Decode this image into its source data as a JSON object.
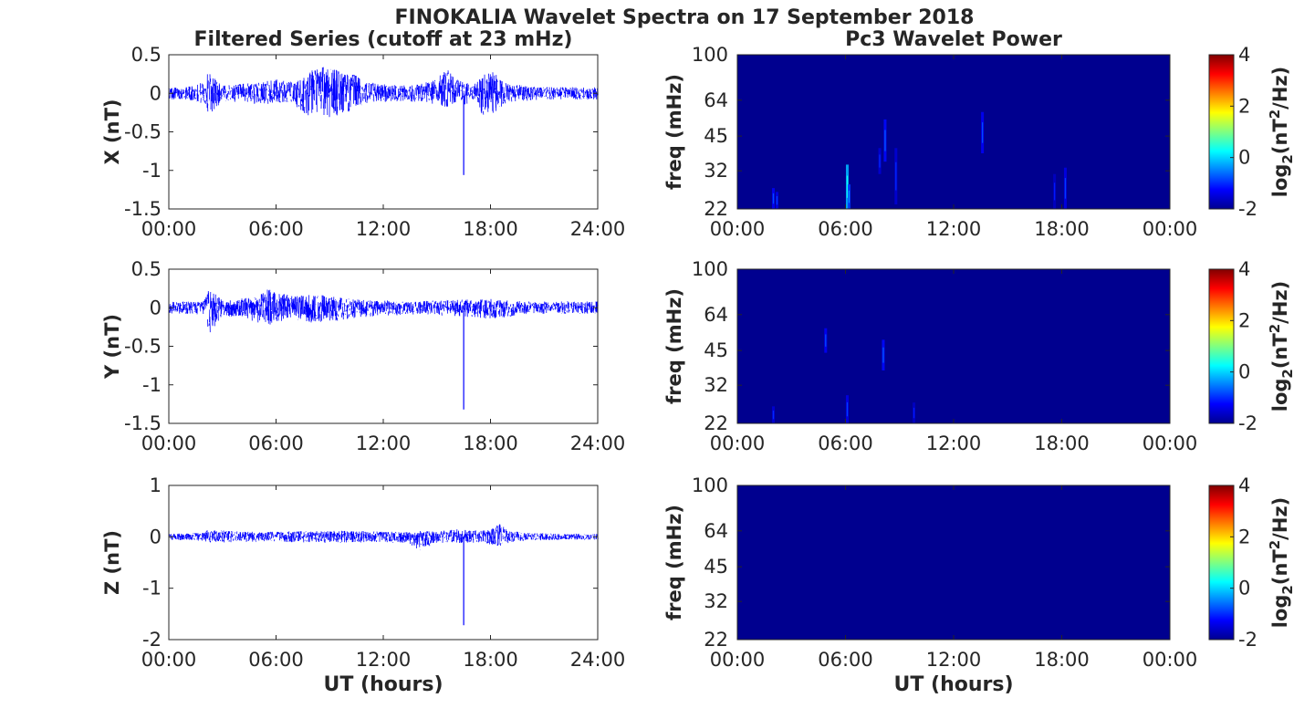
{
  "figure": {
    "title": "FINOKALIA Wavelet Spectra on 17 September 2018",
    "left_column_title": "Filtered Series (cutoff at 23 mHz)",
    "right_column_title": "Pc3 Wavelet Power",
    "bottom_xlabel_left": "UT (hours)",
    "bottom_xlabel_right": "UT (hours)"
  },
  "colors": {
    "series": "#0000ff",
    "spectrogram_background": "#00008f",
    "axis": "#262626"
  },
  "chart_data": [
    {
      "type": "line",
      "component": "X",
      "ylabel": "X (nT)",
      "ylim": [
        -1.5,
        0.5
      ],
      "yticks": [
        "0.5",
        "0",
        "-0.5",
        "-1",
        "-1.5"
      ],
      "xlim": [
        0,
        24
      ],
      "xticks": [
        "00:00",
        "06:00",
        "12:00",
        "18:00",
        "24:00"
      ],
      "series": [
        {
          "envelope_hours": [
            0,
            1,
            2,
            2.2,
            3,
            4,
            5,
            6,
            7,
            7.5,
            8,
            8.5,
            9,
            9.5,
            10,
            10.5,
            11,
            12,
            13,
            14,
            15,
            15.5,
            16,
            16.5,
            17,
            17.5,
            18,
            18.5,
            19,
            20,
            21,
            22,
            23,
            24
          ],
          "upper_nT": [
            0.08,
            0.08,
            0.15,
            0.3,
            0.1,
            0.12,
            0.15,
            0.18,
            0.15,
            0.2,
            0.3,
            0.35,
            0.4,
            0.3,
            0.25,
            0.25,
            0.15,
            0.12,
            0.1,
            0.12,
            0.18,
            0.35,
            0.2,
            0.15,
            0.1,
            0.25,
            0.3,
            0.2,
            0.12,
            0.1,
            0.08,
            0.08,
            0.08,
            0.08
          ],
          "lower_nT": [
            -0.08,
            -0.08,
            -0.15,
            -0.3,
            -0.1,
            -0.12,
            -0.15,
            -0.15,
            -0.15,
            -0.28,
            -0.3,
            -0.3,
            -0.32,
            -0.28,
            -0.25,
            -0.2,
            -0.15,
            -0.12,
            -0.1,
            -0.12,
            -0.15,
            -0.2,
            -0.15,
            -0.15,
            -0.12,
            -0.28,
            -0.3,
            -0.2,
            -0.12,
            -0.1,
            -0.08,
            -0.08,
            -0.08,
            -0.08
          ]
        }
      ],
      "spike": {
        "hour": 16.5,
        "value_nT": -1.06
      }
    },
    {
      "type": "line",
      "component": "Y",
      "ylabel": "Y (nT)",
      "ylim": [
        -1.5,
        0.5
      ],
      "yticks": [
        "0.5",
        "0",
        "-0.5",
        "-1",
        "-1.5"
      ],
      "xlim": [
        0,
        24
      ],
      "xticks": [
        "00:00",
        "06:00",
        "12:00",
        "18:00",
        "24:00"
      ],
      "series": [
        {
          "envelope_hours": [
            0,
            1,
            2,
            2.2,
            3,
            4,
            5,
            5.5,
            6,
            7,
            8,
            9,
            10,
            11,
            12,
            13,
            14,
            15,
            16,
            17,
            18,
            19,
            20,
            21,
            22,
            23,
            24
          ],
          "upper_nT": [
            0.08,
            0.08,
            0.1,
            0.25,
            0.1,
            0.12,
            0.15,
            0.25,
            0.2,
            0.15,
            0.18,
            0.15,
            0.12,
            0.1,
            0.1,
            0.08,
            0.08,
            0.1,
            0.12,
            0.1,
            0.12,
            0.1,
            0.08,
            0.08,
            0.08,
            0.08,
            0.08
          ],
          "lower_nT": [
            -0.08,
            -0.08,
            -0.1,
            -0.35,
            -0.12,
            -0.12,
            -0.2,
            -0.25,
            -0.2,
            -0.15,
            -0.2,
            -0.18,
            -0.15,
            -0.12,
            -0.1,
            -0.1,
            -0.08,
            -0.1,
            -0.12,
            -0.12,
            -0.15,
            -0.12,
            -0.08,
            -0.08,
            -0.08,
            -0.08,
            -0.08
          ]
        }
      ],
      "spike": {
        "hour": 16.5,
        "value_nT": -1.32
      }
    },
    {
      "type": "line",
      "component": "Z",
      "ylabel": "Z (nT)",
      "ylim": [
        -2,
        1
      ],
      "yticks": [
        "1",
        "0",
        "-1",
        "-2"
      ],
      "xlim": [
        0,
        24
      ],
      "xticks": [
        "00:00",
        "06:00",
        "12:00",
        "18:00",
        "24:00"
      ],
      "series": [
        {
          "envelope_hours": [
            0,
            2,
            2.2,
            4,
            6,
            8,
            10,
            12,
            13.5,
            14,
            15,
            16,
            17,
            18,
            18.5,
            19,
            20,
            22,
            24
          ],
          "upper_nT": [
            0.06,
            0.08,
            0.15,
            0.1,
            0.1,
            0.12,
            0.12,
            0.1,
            0.1,
            0.12,
            0.1,
            0.15,
            0.12,
            0.15,
            0.25,
            0.12,
            0.08,
            0.06,
            0.06
          ],
          "lower_nT": [
            -0.06,
            -0.08,
            -0.12,
            -0.1,
            -0.1,
            -0.12,
            -0.12,
            -0.1,
            -0.15,
            -0.28,
            -0.12,
            -0.12,
            -0.12,
            -0.15,
            -0.2,
            -0.12,
            -0.08,
            -0.06,
            -0.06
          ]
        }
      ],
      "spike": {
        "hour": 16.5,
        "value_nT": -1.72
      }
    },
    {
      "type": "heatmap",
      "component": "X",
      "ylabel": "freq (mHz)",
      "yticks": [
        "100",
        "64",
        "45",
        "32",
        "22"
      ],
      "ytick_values_mHz": [
        100,
        64,
        45,
        32,
        22
      ],
      "ylim_mHz": [
        22,
        100
      ],
      "yscale": "log",
      "xlim": [
        0,
        24
      ],
      "xticks": [
        "00:00",
        "06:00",
        "12:00",
        "18:00",
        "00:00"
      ],
      "colorbar": {
        "label_main": "log",
        "label_sub": "2",
        "label_rest": "(nT",
        "label_sup": "2",
        "label_tail": "/Hz)",
        "ticks": [
          "4",
          "2",
          "0",
          "-2"
        ],
        "range": [
          -2,
          4
        ]
      },
      "hotspots": [
        {
          "hour": 2.0,
          "f_low_mHz": 22,
          "f_high_mHz": 27,
          "intensity": -1.3
        },
        {
          "hour": 2.2,
          "f_low_mHz": 22,
          "f_high_mHz": 26,
          "intensity": -1.4
        },
        {
          "hour": 6.1,
          "f_low_mHz": 22,
          "f_high_mHz": 34,
          "intensity": -0.2
        },
        {
          "hour": 6.2,
          "f_low_mHz": 22,
          "f_high_mHz": 28,
          "intensity": -0.9
        },
        {
          "hour": 7.9,
          "f_low_mHz": 31,
          "f_high_mHz": 40,
          "intensity": -1.5
        },
        {
          "hour": 8.2,
          "f_low_mHz": 35,
          "f_high_mHz": 53,
          "intensity": -1.2
        },
        {
          "hour": 8.8,
          "f_low_mHz": 23,
          "f_high_mHz": 40,
          "intensity": -1.5
        },
        {
          "hour": 13.6,
          "f_low_mHz": 38,
          "f_high_mHz": 57,
          "intensity": -1.3
        },
        {
          "hour": 17.6,
          "f_low_mHz": 22,
          "f_high_mHz": 31,
          "intensity": -1.6
        },
        {
          "hour": 18.2,
          "f_low_mHz": 22,
          "f_high_mHz": 33,
          "intensity": -1.4
        }
      ]
    },
    {
      "type": "heatmap",
      "component": "Y",
      "ylabel": "freq (mHz)",
      "yticks": [
        "100",
        "64",
        "45",
        "32",
        "22"
      ],
      "ytick_values_mHz": [
        100,
        64,
        45,
        32,
        22
      ],
      "ylim_mHz": [
        22,
        100
      ],
      "yscale": "log",
      "xlim": [
        0,
        24
      ],
      "xticks": [
        "00:00",
        "06:00",
        "12:00",
        "18:00",
        "00:00"
      ],
      "colorbar": {
        "label_main": "log",
        "label_sub": "2",
        "label_rest": "(nT",
        "label_sup": "2",
        "label_tail": "/Hz)",
        "ticks": [
          "4",
          "2",
          "0",
          "-2"
        ],
        "range": [
          -2,
          4
        ]
      },
      "hotspots": [
        {
          "hour": 2.0,
          "f_low_mHz": 22,
          "f_high_mHz": 26,
          "intensity": -1.5
        },
        {
          "hour": 4.9,
          "f_low_mHz": 44,
          "f_high_mHz": 56,
          "intensity": -1.3
        },
        {
          "hour": 6.1,
          "f_low_mHz": 22,
          "f_high_mHz": 29,
          "intensity": -1.4
        },
        {
          "hour": 8.1,
          "f_low_mHz": 37,
          "f_high_mHz": 50,
          "intensity": -1.2
        },
        {
          "hour": 9.8,
          "f_low_mHz": 22,
          "f_high_mHz": 27,
          "intensity": -1.6
        }
      ]
    },
    {
      "type": "heatmap",
      "component": "Z",
      "ylabel": "freq (mHz)",
      "yticks": [
        "100",
        "64",
        "45",
        "32",
        "22"
      ],
      "ytick_values_mHz": [
        100,
        64,
        45,
        32,
        22
      ],
      "ylim_mHz": [
        22,
        100
      ],
      "yscale": "log",
      "xlim": [
        0,
        24
      ],
      "xticks": [
        "00:00",
        "06:00",
        "12:00",
        "18:00",
        "00:00"
      ],
      "colorbar": {
        "label_main": "log",
        "label_sub": "2",
        "label_rest": "(nT",
        "label_sup": "2",
        "label_tail": "/Hz)",
        "ticks": [
          "4",
          "2",
          "0",
          "-2"
        ],
        "range": [
          -2,
          4
        ]
      },
      "hotspots": []
    }
  ]
}
